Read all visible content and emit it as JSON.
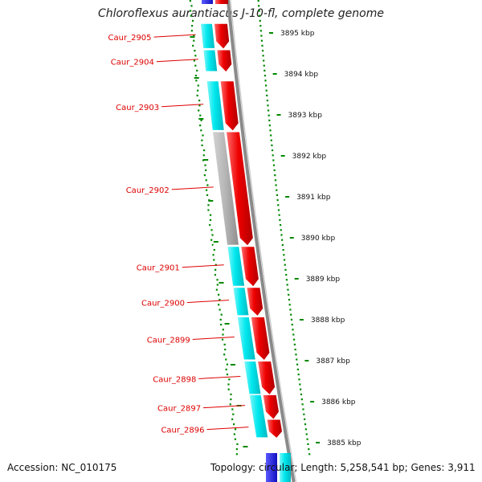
{
  "title": "Chloroflexus aurantiacus J-10-fl, complete genome",
  "footer": {
    "accession": "Accession: NC_010175",
    "topology": "Topology: circular; Length: 5,258,541 bp; Genes: 3,911"
  },
  "colors": {
    "forward_gene": "#ee0000",
    "reverse_gene": "#00e8ee",
    "other_feature": "#b4b4b4",
    "gene_label": "#dd0000",
    "gc_skew_tick": "#008800",
    "backbone": "#8a8a8a",
    "rrna_feature": "#1a1aee"
  },
  "kbp_markers": [
    "3895 kbp",
    "3894 kbp",
    "3893 kbp",
    "3892 kbp",
    "3891 kbp",
    "3890 kbp",
    "3889 kbp",
    "3888 kbp",
    "3887 kbp",
    "3886 kbp",
    "3885 kbp"
  ],
  "genes": [
    {
      "label": "Caur_2905",
      "strand": "forward",
      "start_kbp": 3895.2,
      "end_kbp": 3894.6
    },
    {
      "label": "Caur_2904",
      "strand": "forward",
      "start_kbp": 3894.56,
      "end_kbp": 3894.04
    },
    {
      "label": "Caur_2903",
      "strand": "forward",
      "start_kbp": 3893.8,
      "end_kbp": 3892.6
    },
    {
      "label": "Caur_2902",
      "strand": "forward",
      "start_kbp": 3892.56,
      "end_kbp": 3889.8
    },
    {
      "label": "Caur_2901",
      "strand": "forward",
      "start_kbp": 3889.76,
      "end_kbp": 3888.8
    },
    {
      "label": "Caur_2900",
      "strand": "forward",
      "start_kbp": 3888.76,
      "end_kbp": 3888.08
    },
    {
      "label": "Caur_2899",
      "strand": "forward",
      "start_kbp": 3888.04,
      "end_kbp": 3887.0
    },
    {
      "label": "Caur_2898",
      "strand": "forward",
      "start_kbp": 3886.96,
      "end_kbp": 3886.16
    },
    {
      "label": "Caur_2897",
      "strand": "forward",
      "start_kbp": 3886.14,
      "end_kbp": 3885.56
    },
    {
      "label": "Caur_2896",
      "strand": "forward",
      "start_kbp": 3885.54,
      "end_kbp": 3885.1
    }
  ],
  "reverse_features": [
    {
      "type": "cds",
      "start_kbp": 3895.2,
      "end_kbp": 3894.6
    },
    {
      "type": "cds",
      "start_kbp": 3894.56,
      "end_kbp": 3894.04
    },
    {
      "type": "cds",
      "start_kbp": 3893.8,
      "end_kbp": 3892.6
    },
    {
      "type": "other",
      "start_kbp": 3892.56,
      "end_kbp": 3889.8
    },
    {
      "type": "cds",
      "start_kbp": 3889.76,
      "end_kbp": 3888.8
    },
    {
      "type": "cds",
      "start_kbp": 3888.76,
      "end_kbp": 3888.08
    },
    {
      "type": "cds",
      "start_kbp": 3888.04,
      "end_kbp": 3887.0
    },
    {
      "type": "cds",
      "start_kbp": 3886.96,
      "end_kbp": 3886.16
    },
    {
      "type": "cds",
      "start_kbp": 3886.14,
      "end_kbp": 3885.1
    }
  ]
}
